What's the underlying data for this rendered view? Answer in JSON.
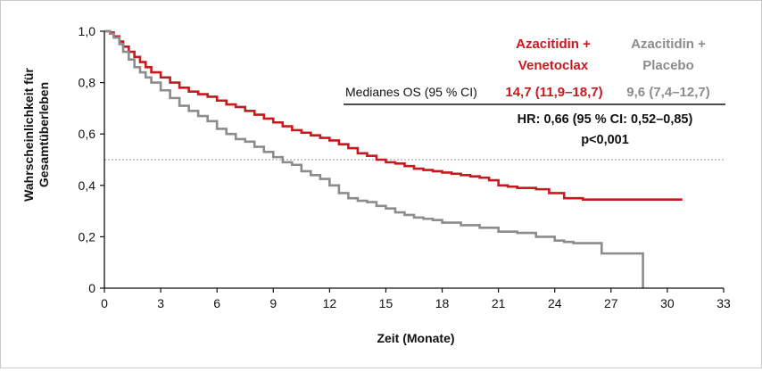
{
  "chart_data": {
    "type": "line",
    "xlabel": "Zeit (Monate)",
    "ylabel_lines": [
      "Wahrscheinlichkeit für",
      "Gesamtüberleben"
    ],
    "xlim": [
      0,
      33
    ],
    "ylim": [
      0,
      1
    ],
    "x_ticks": [
      "0",
      "3",
      "6",
      "9",
      "12",
      "15",
      "18",
      "21",
      "24",
      "27",
      "30",
      "33"
    ],
    "y_ticks": [
      "0",
      "0,2",
      "0,4",
      "0,6",
      "0,8",
      "1,0"
    ],
    "reference_line_y": 0.5,
    "series": [
      {
        "name": "Azacitidin + Venetoclax",
        "name_lines": [
          "Azacitidin +",
          "Venetoclax"
        ],
        "color": "#c8191f",
        "median": "14,7 (11,9–18,7)",
        "points": [
          [
            0,
            1.0
          ],
          [
            0.3,
            0.995
          ],
          [
            0.5,
            0.98
          ],
          [
            0.8,
            0.96
          ],
          [
            1.0,
            0.94
          ],
          [
            1.3,
            0.92
          ],
          [
            1.6,
            0.9
          ],
          [
            1.9,
            0.88
          ],
          [
            2.2,
            0.86
          ],
          [
            2.5,
            0.84
          ],
          [
            3,
            0.82
          ],
          [
            3.5,
            0.8
          ],
          [
            4,
            0.78
          ],
          [
            4.5,
            0.765
          ],
          [
            5,
            0.755
          ],
          [
            5.5,
            0.745
          ],
          [
            6,
            0.73
          ],
          [
            6.5,
            0.715
          ],
          [
            7,
            0.705
          ],
          [
            7.5,
            0.69
          ],
          [
            8,
            0.675
          ],
          [
            8.5,
            0.66
          ],
          [
            9,
            0.645
          ],
          [
            9.5,
            0.63
          ],
          [
            10,
            0.615
          ],
          [
            10.5,
            0.605
          ],
          [
            11,
            0.595
          ],
          [
            11.5,
            0.585
          ],
          [
            12,
            0.575
          ],
          [
            12.5,
            0.56
          ],
          [
            13,
            0.545
          ],
          [
            13.5,
            0.525
          ],
          [
            14,
            0.515
          ],
          [
            14.5,
            0.5
          ],
          [
            15,
            0.49
          ],
          [
            15.5,
            0.485
          ],
          [
            16,
            0.475
          ],
          [
            16.5,
            0.465
          ],
          [
            17,
            0.46
          ],
          [
            17.5,
            0.455
          ],
          [
            18,
            0.45
          ],
          [
            18.5,
            0.445
          ],
          [
            19,
            0.44
          ],
          [
            19.5,
            0.435
          ],
          [
            20,
            0.43
          ],
          [
            20.5,
            0.42
          ],
          [
            21,
            0.4
          ],
          [
            21.5,
            0.395
          ],
          [
            22,
            0.39
          ],
          [
            23,
            0.385
          ],
          [
            23.7,
            0.37
          ],
          [
            24.5,
            0.35
          ],
          [
            25.5,
            0.345
          ],
          [
            27,
            0.345
          ],
          [
            28.5,
            0.345
          ],
          [
            30.8,
            0.345
          ]
        ]
      },
      {
        "name": "Azacitidin + Placebo",
        "name_lines": [
          "Azacitidin +",
          "Placebo"
        ],
        "color": "#8c8c8c",
        "median": "9,6 (7,4–12,7)",
        "points": [
          [
            0,
            1.0
          ],
          [
            0.3,
            0.99
          ],
          [
            0.5,
            0.975
          ],
          [
            0.8,
            0.95
          ],
          [
            1.0,
            0.92
          ],
          [
            1.3,
            0.89
          ],
          [
            1.6,
            0.86
          ],
          [
            1.9,
            0.84
          ],
          [
            2.2,
            0.82
          ],
          [
            2.5,
            0.8
          ],
          [
            3,
            0.77
          ],
          [
            3.5,
            0.74
          ],
          [
            4,
            0.71
          ],
          [
            4.5,
            0.69
          ],
          [
            5,
            0.67
          ],
          [
            5.5,
            0.65
          ],
          [
            6,
            0.62
          ],
          [
            6.5,
            0.6
          ],
          [
            7,
            0.58
          ],
          [
            7.5,
            0.57
          ],
          [
            8,
            0.55
          ],
          [
            8.5,
            0.53
          ],
          [
            9,
            0.51
          ],
          [
            9.5,
            0.49
          ],
          [
            10,
            0.48
          ],
          [
            10.5,
            0.455
          ],
          [
            11,
            0.44
          ],
          [
            11.5,
            0.425
          ],
          [
            12,
            0.4
          ],
          [
            12.5,
            0.37
          ],
          [
            13,
            0.35
          ],
          [
            13.5,
            0.34
          ],
          [
            14,
            0.335
          ],
          [
            14.5,
            0.32
          ],
          [
            15,
            0.31
          ],
          [
            15.5,
            0.295
          ],
          [
            16,
            0.285
          ],
          [
            16.5,
            0.275
          ],
          [
            17,
            0.27
          ],
          [
            17.5,
            0.265
          ],
          [
            18,
            0.255
          ],
          [
            19,
            0.245
          ],
          [
            20,
            0.235
          ],
          [
            21,
            0.22
          ],
          [
            22,
            0.215
          ],
          [
            23,
            0.2
          ],
          [
            24,
            0.185
          ],
          [
            24.5,
            0.18
          ],
          [
            25,
            0.175
          ],
          [
            26.5,
            0.135
          ],
          [
            27.5,
            0.135
          ],
          [
            28.7,
            0.135
          ],
          [
            28.7,
            0.0
          ]
        ]
      }
    ],
    "table": {
      "row_label": "Medianes OS (95 % CI)",
      "hr_line1": "HR: 0,66 (95 % CI: 0,52–0,85)",
      "hr_line2": "p<0,001"
    }
  }
}
